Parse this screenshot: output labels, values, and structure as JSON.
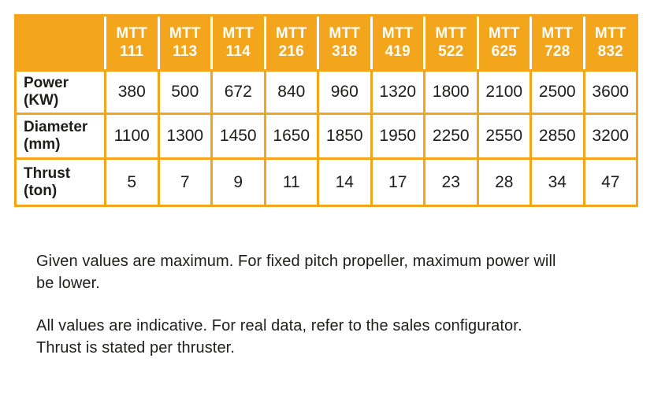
{
  "colors": {
    "accent_orange": "#f3a61b",
    "header_text": "#ffffff",
    "body_text": "#1d1d1b"
  },
  "table": {
    "columns": [
      "MTT\n111",
      "MTT\n113",
      "MTT\n114",
      "MTT\n216",
      "MTT\n318",
      "MTT\n419",
      "MTT\n522",
      "MTT\n625",
      "MTT\n728",
      "MTT\n832"
    ],
    "rows": [
      {
        "label": "Power\n(KW)",
        "values": [
          "380",
          "500",
          "672",
          "840",
          "960",
          "1320",
          "1800",
          "2100",
          "2500",
          "3600"
        ]
      },
      {
        "label": "Diameter\n(mm)",
        "values": [
          "1100",
          "1300",
          "1450",
          "1650",
          "1850",
          "1950",
          "2250",
          "2550",
          "2850",
          "3200"
        ]
      },
      {
        "label": "Thrust\n(ton)",
        "values": [
          "5",
          "7",
          "9",
          "11",
          "14",
          "17",
          "23",
          "28",
          "34",
          "47"
        ]
      }
    ]
  },
  "notes": {
    "note1": "Given values are maximum. For fixed pitch propeller, maximum power will\nbe lower.",
    "note2": "All values are indicative. For real data, refer to the sales configurator.\nThrust is stated per thruster."
  }
}
